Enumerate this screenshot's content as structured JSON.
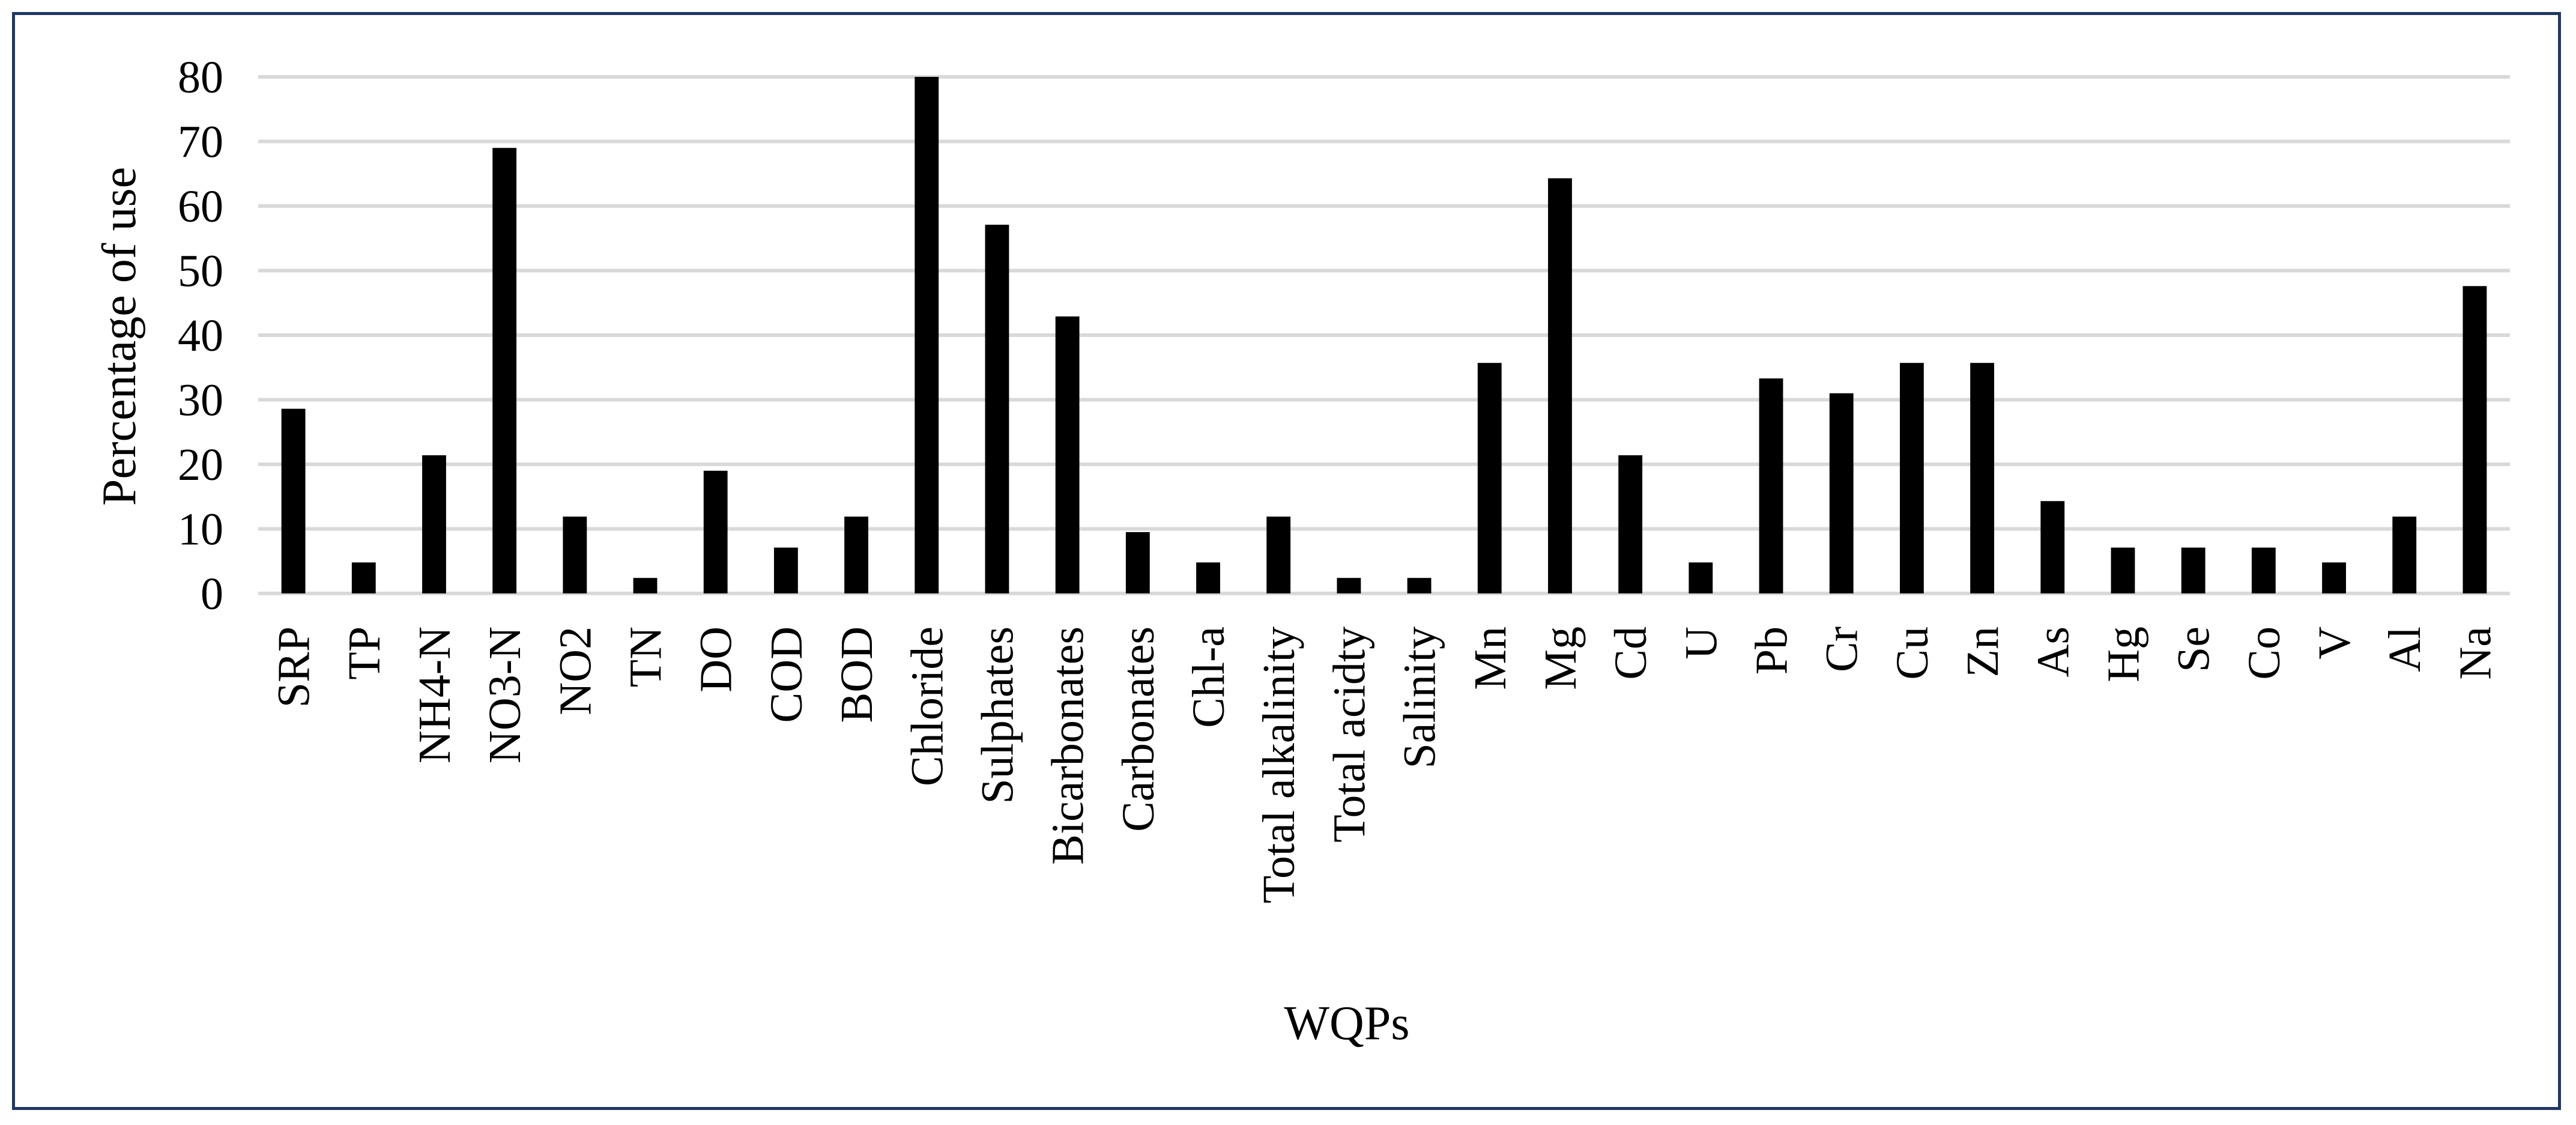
{
  "chart_data": {
    "type": "bar",
    "title": "",
    "xlabel": "WQPs",
    "ylabel": "Percentage of use",
    "ylim": [
      0,
      80
    ],
    "yticks": [
      0,
      10,
      20,
      30,
      40,
      50,
      60,
      70,
      80
    ],
    "grid": true,
    "legend": "none",
    "bar_color": "#000000",
    "categories": [
      "SRP",
      "TP",
      "NH4-N",
      "NO3-N",
      "NO2",
      "TN",
      "DO",
      "COD",
      "BOD",
      "Chloride",
      "Sulphates",
      "Bicarbonates",
      "Carbonates",
      "Chl-a",
      "Total alkalinity",
      "Total acidty",
      "Salinity",
      "Mn",
      "Mg",
      "Cd",
      "U",
      "Pb",
      "Cr",
      "Cu",
      "Zn",
      "As",
      "Hg",
      "Se",
      "Co",
      "V",
      "Al",
      "Na"
    ],
    "values": [
      28.6,
      4.8,
      21.4,
      69.0,
      11.9,
      2.4,
      19.0,
      7.1,
      11.9,
      80.0,
      57.1,
      42.9,
      9.5,
      4.8,
      11.9,
      2.4,
      2.4,
      35.7,
      64.3,
      21.4,
      4.8,
      33.3,
      31.0,
      35.7,
      35.7,
      14.3,
      7.1,
      7.1,
      7.1,
      4.8,
      11.9,
      47.6
    ]
  }
}
